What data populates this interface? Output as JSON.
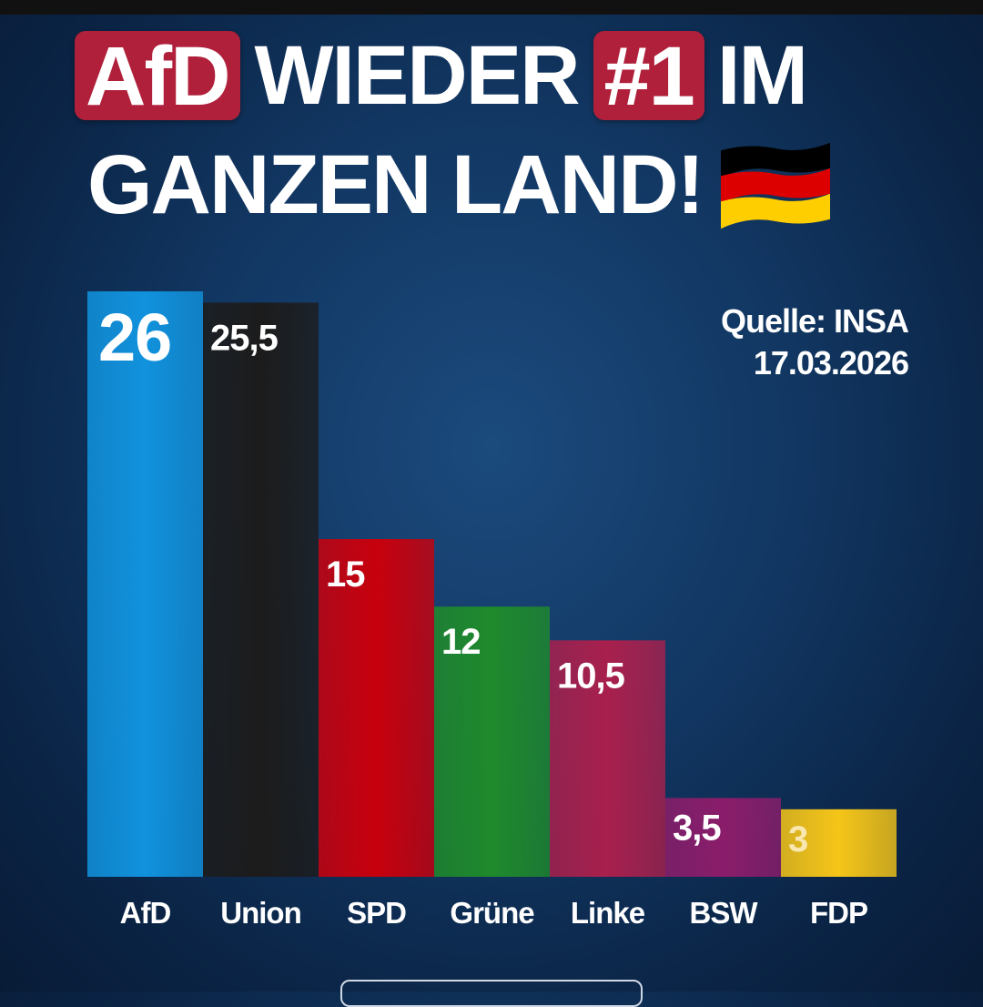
{
  "headline": {
    "highlight_1": "AfD",
    "text_1": "WIEDER",
    "highlight_2": "#1",
    "text_2": "IM",
    "line_2": "GANZEN LAND!",
    "flag_icon": "germany-flag-icon"
  },
  "source": {
    "line_1": "Quelle: INSA",
    "line_2": "17.03.2026"
  },
  "colors": {
    "background": "#0f2f57",
    "highlight": "#b0203a",
    "text": "#ffffff",
    "flag": [
      "#000000",
      "#dd0000",
      "#ffce00"
    ]
  },
  "chart_data": {
    "type": "bar",
    "categories": [
      "AfD",
      "Union",
      "SPD",
      "Grüne",
      "Linke",
      "BSW",
      "FDP"
    ],
    "values": [
      26,
      25.5,
      15,
      12,
      10.5,
      3.5,
      3
    ],
    "value_labels": [
      "26",
      "25,5",
      "15",
      "12",
      "10,5",
      "3,5",
      "3"
    ],
    "colors": [
      "#1192dd",
      "#1c1c1c",
      "#c8000d",
      "#1f8a2c",
      "#a8204d",
      "#8b1d6b",
      "#f5c518"
    ],
    "label_colors": [
      "#ffffff",
      "#ffffff",
      "#ffffff",
      "#ffffff",
      "#ffffff",
      "#ffffff",
      "#f9e7b0"
    ],
    "title": "",
    "xlabel": "",
    "ylabel": "",
    "ylim": [
      0,
      26
    ],
    "grid": false,
    "legend": "none"
  }
}
